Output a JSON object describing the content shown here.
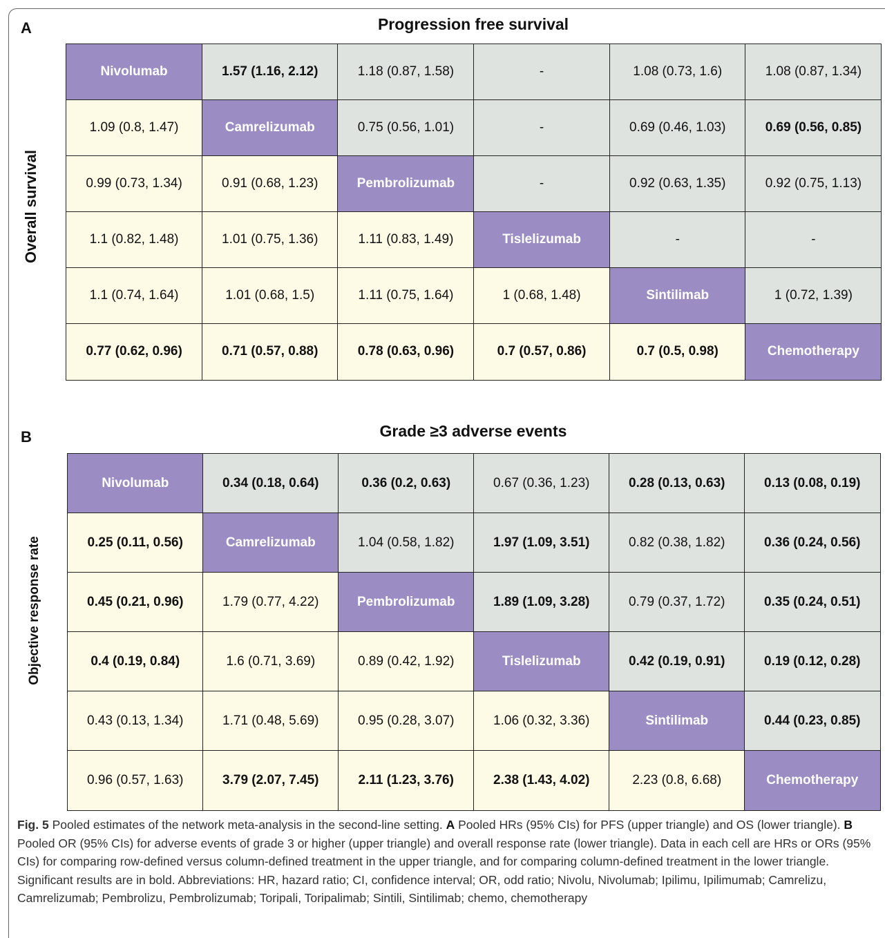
{
  "panels": [
    {
      "letter": "A",
      "title": "Progression free survival",
      "side_label": "Overall survival",
      "rows": [
        [
          "Nivolumab",
          "1.57 (1.16, 2.12)",
          "1.18 (0.87, 1.58)",
          "-",
          "1.08 (0.73, 1.6)",
          "1.08 (0.87, 1.34)"
        ],
        [
          "1.09 (0.8, 1.47)",
          "Camrelizumab",
          "0.75 (0.56, 1.01)",
          "-",
          "0.69 (0.46, 1.03)",
          "0.69 (0.56, 0.85)"
        ],
        [
          "0.99 (0.73, 1.34)",
          "0.91 (0.68, 1.23)",
          "Pembrolizumab",
          "-",
          "0.92 (0.63, 1.35)",
          "0.92 (0.75, 1.13)"
        ],
        [
          "1.1 (0.82, 1.48)",
          "1.01 (0.75, 1.36)",
          "1.11 (0.83, 1.49)",
          "Tislelizumab",
          "-",
          "-"
        ],
        [
          "1.1 (0.74, 1.64)",
          "1.01 (0.68, 1.5)",
          "1.11 (0.75, 1.64)",
          "1 (0.68, 1.48)",
          "Sintilimab",
          "1 (0.72, 1.39)"
        ],
        [
          "0.77 (0.62, 0.96)",
          "0.71 (0.57, 0.88)",
          "0.78 (0.63, 0.96)",
          "0.7 (0.57, 0.86)",
          "0.7 (0.5, 0.98)",
          "Chemotherapy"
        ]
      ],
      "bold": [
        [
          true,
          true,
          false,
          false,
          false,
          false
        ],
        [
          false,
          true,
          false,
          false,
          false,
          true
        ],
        [
          false,
          false,
          true,
          false,
          false,
          false
        ],
        [
          false,
          false,
          false,
          true,
          false,
          false
        ],
        [
          false,
          false,
          false,
          false,
          true,
          false
        ],
        [
          true,
          true,
          true,
          true,
          true,
          true
        ]
      ]
    },
    {
      "letter": "B",
      "title": "Grade ≥3 adverse events",
      "side_label": "Objective response rate",
      "rows": [
        [
          "Nivolumab",
          "0.34 (0.18, 0.64)",
          "0.36 (0.2, 0.63)",
          "0.67 (0.36, 1.23)",
          "0.28 (0.13, 0.63)",
          "0.13 (0.08, 0.19)"
        ],
        [
          "0.25 (0.11, 0.56)",
          "Camrelizumab",
          "1.04 (0.58, 1.82)",
          "1.97 (1.09, 3.51)",
          "0.82 (0.38, 1.82)",
          "0.36 (0.24, 0.56)"
        ],
        [
          "0.45 (0.21, 0.96)",
          "1.79 (0.77, 4.22)",
          "Pembrolizumab",
          "1.89 (1.09, 3.28)",
          "0.79 (0.37, 1.72)",
          "0.35 (0.24, 0.51)"
        ],
        [
          "0.4 (0.19, 0.84)",
          "1.6 (0.71, 3.69)",
          "0.89 (0.42, 1.92)",
          "Tislelizumab",
          "0.42 (0.19, 0.91)",
          "0.19 (0.12, 0.28)"
        ],
        [
          "0.43 (0.13, 1.34)",
          "1.71 (0.48, 5.69)",
          "0.95 (0.28, 3.07)",
          "1.06 (0.32, 3.36)",
          "Sintilimab",
          "0.44 (0.23, 0.85)"
        ],
        [
          "0.96 (0.57, 1.63)",
          "3.79 (2.07, 7.45)",
          "2.11 (1.23, 3.76)",
          "2.38 (1.43, 4.02)",
          "2.23 (0.8, 6.68)",
          "Chemotherapy"
        ]
      ],
      "bold": [
        [
          true,
          true,
          true,
          false,
          true,
          true
        ],
        [
          true,
          true,
          false,
          true,
          false,
          true
        ],
        [
          true,
          false,
          true,
          true,
          false,
          true
        ],
        [
          true,
          false,
          false,
          true,
          true,
          true
        ],
        [
          false,
          false,
          false,
          false,
          true,
          true
        ],
        [
          false,
          true,
          true,
          true,
          false,
          true
        ]
      ]
    }
  ],
  "caption": {
    "label": "Fig. 5",
    "segments": [
      {
        "text": "Pooled estimates of the network meta-analysis in the second-line setting. ",
        "bold": false
      },
      {
        "text": "A",
        "bold": true
      },
      {
        "text": " Pooled HRs (95% CIs) for PFS (upper triangle) and OS (lower triangle). ",
        "bold": false
      },
      {
        "text": "B",
        "bold": true
      },
      {
        "text": " Pooled OR (95% CIs) for adverse events of grade 3 or higher (upper triangle) and overall response rate (lower triangle). Data in each cell are HRs or ORs (95% CIs) for comparing row-defined versus column-defined treatment in the upper triangle, and for comparing column-defined treatment in the lower triangle. Significant results are in bold. Abbreviations: HR, hazard ratio; CI, confidence interval; OR, odd ratio; Nivolu, Nivolumab; Ipilimu, Ipilimumab; Camrelizu, Camrelizumab; Pembrolizu, Pembrolizumab; Toripali, Toripalimab; Sintili, Sintilimab; chemo, chemotherapy",
        "bold": false
      }
    ]
  }
}
